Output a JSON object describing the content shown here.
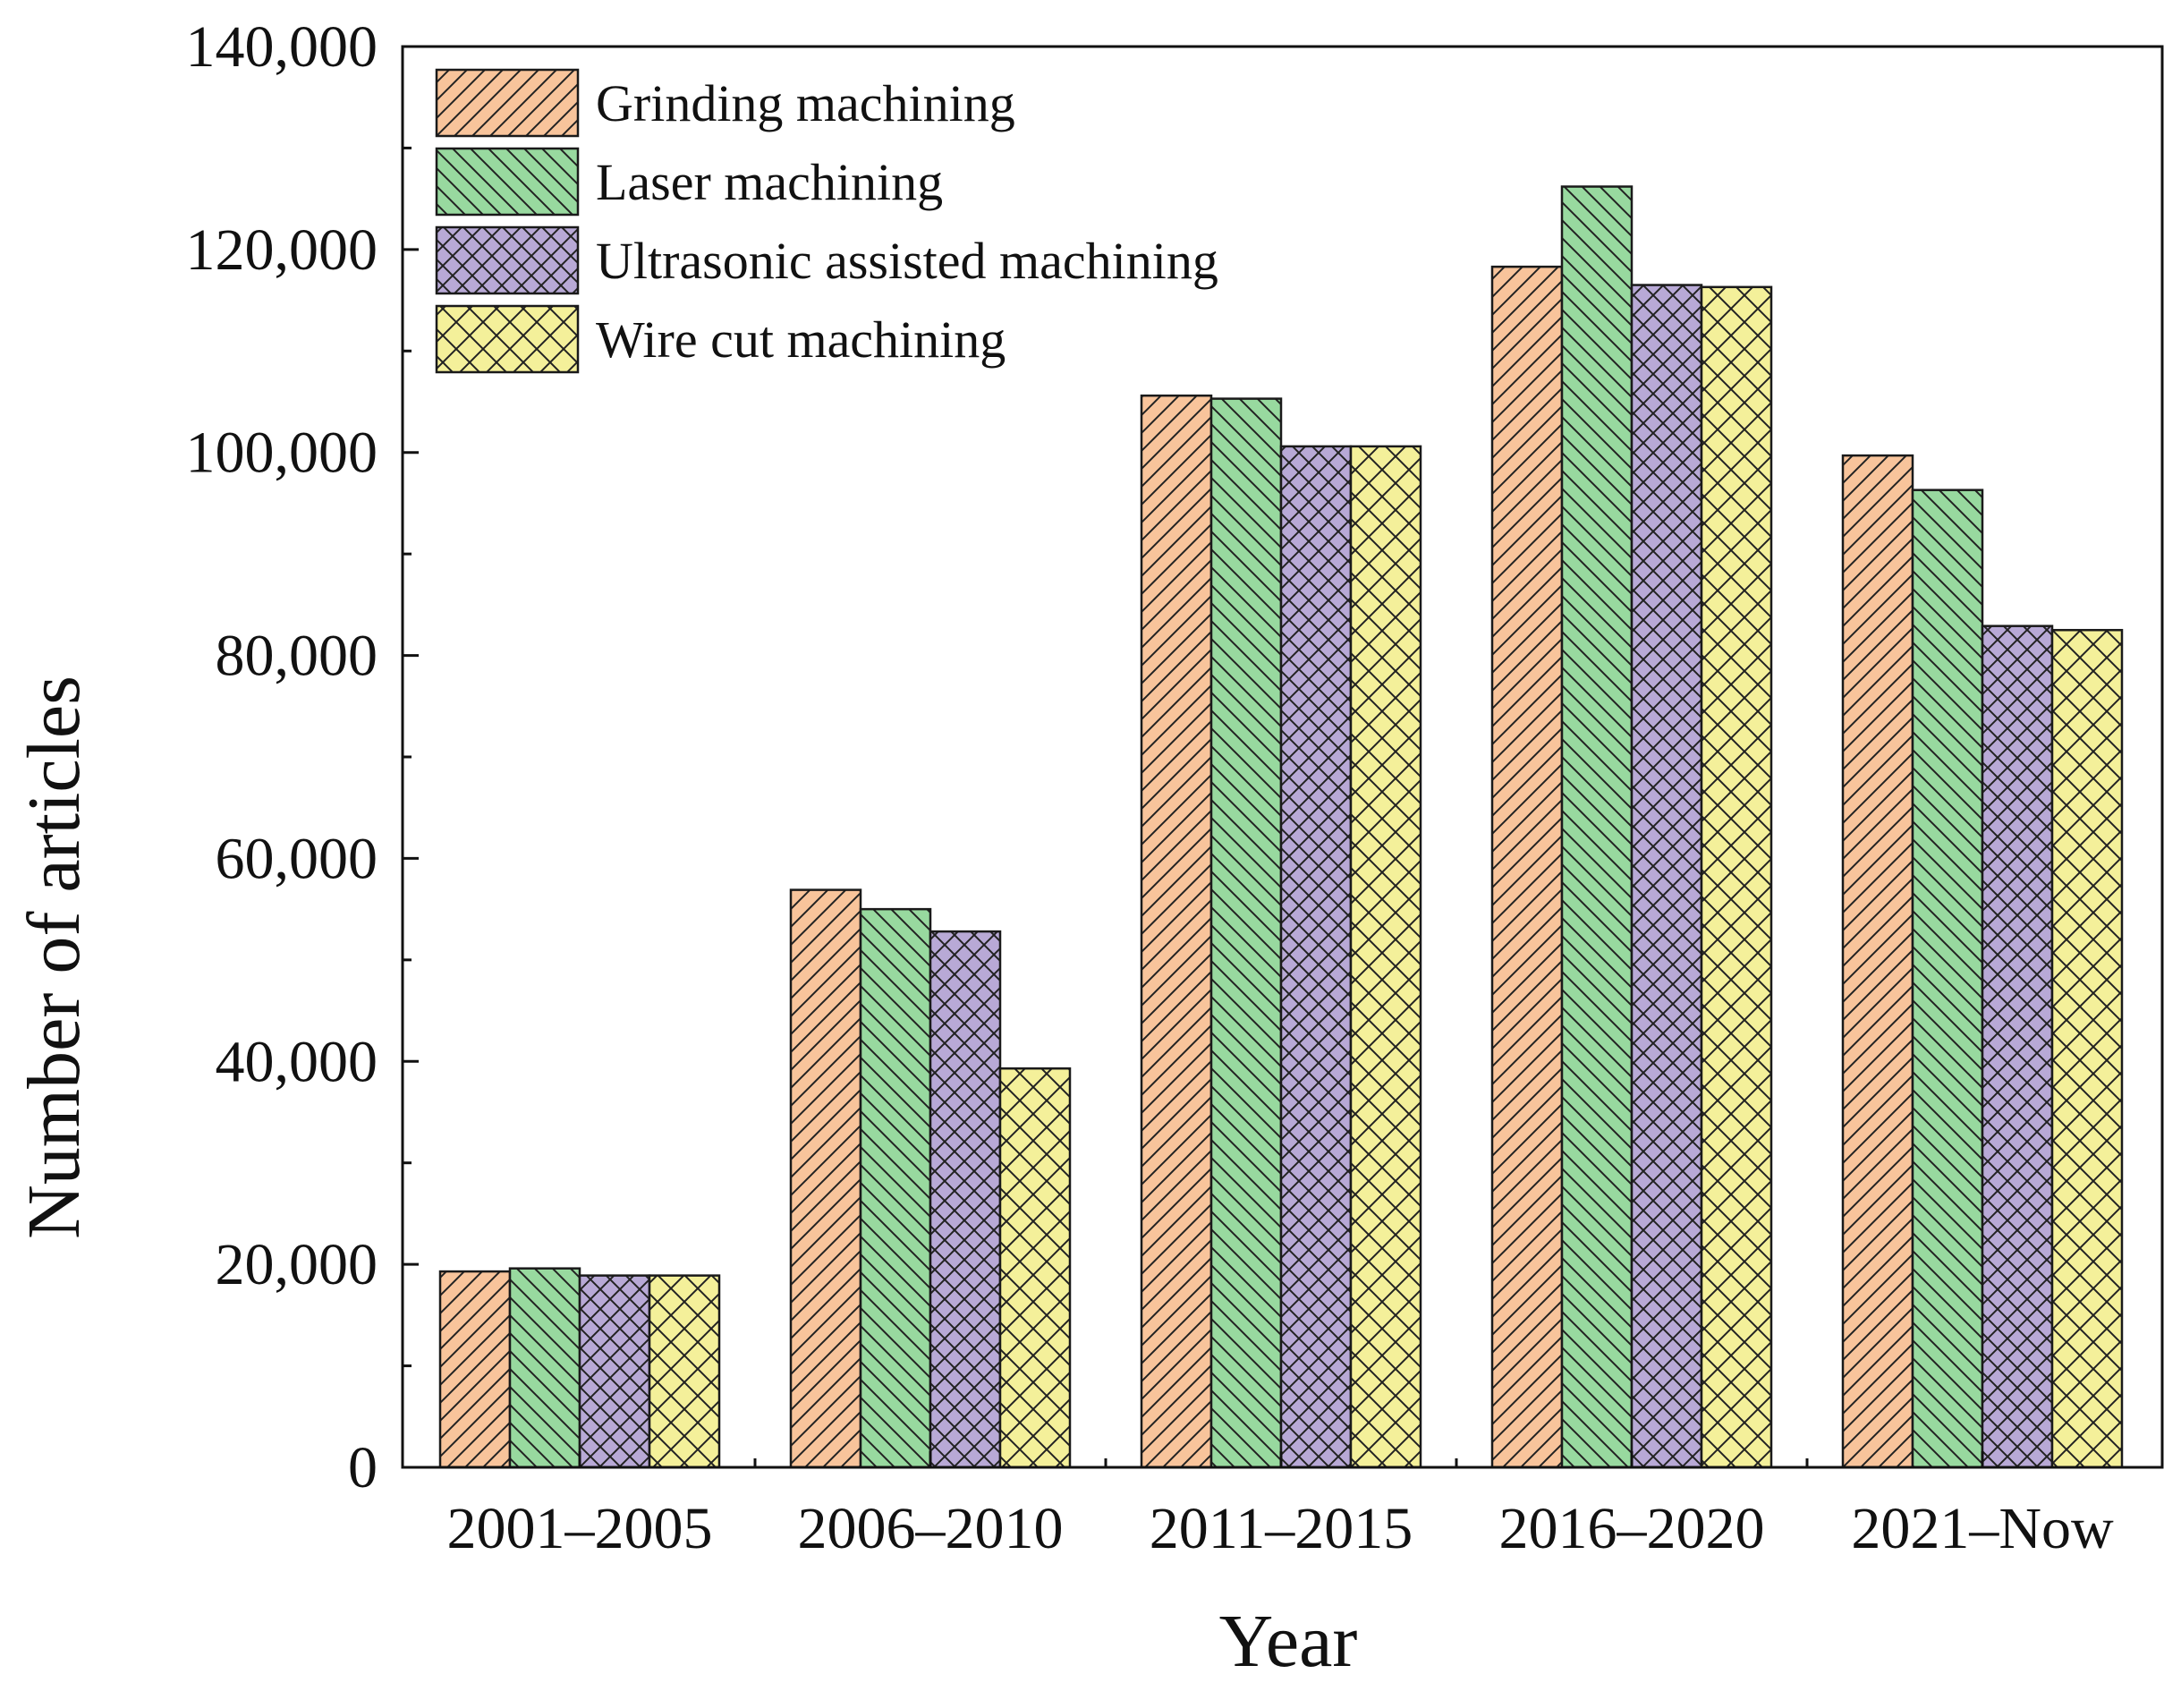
{
  "chart_data": {
    "type": "bar",
    "title": "",
    "xlabel": "Year",
    "ylabel": "Number of articles",
    "categories": [
      "2001–2005",
      "2006–2010",
      "2011–2015",
      "2016–2020",
      "2021–Now"
    ],
    "series": [
      {
        "name": "Grinding machining",
        "values": [
          19300,
          56900,
          105600,
          118300,
          99700
        ],
        "color": "#F8C49B",
        "pattern": "diagonal-forward"
      },
      {
        "name": "Laser machining",
        "values": [
          19600,
          55000,
          105300,
          126200,
          96300
        ],
        "color": "#98D99F",
        "pattern": "diagonal-back"
      },
      {
        "name": "Ultrasonic assisted machining",
        "values": [
          18900,
          52800,
          100600,
          116500,
          82900
        ],
        "color": "#B8A9D6",
        "pattern": "crosshatch"
      },
      {
        "name": "Wire cut machining",
        "values": [
          18900,
          39300,
          100600,
          116300,
          82500
        ],
        "color": "#F4F09A",
        "pattern": "crosshatch-wide"
      }
    ],
    "ylim": [
      0,
      140000
    ],
    "yticks": [
      0,
      20000,
      40000,
      60000,
      80000,
      100000,
      120000,
      140000
    ],
    "ytick_labels": [
      "0",
      "20,000",
      "40,000",
      "60,000",
      "80,000",
      "100,000",
      "120,000",
      "140,000"
    ],
    "grid": false,
    "legend_position": "top-left"
  }
}
